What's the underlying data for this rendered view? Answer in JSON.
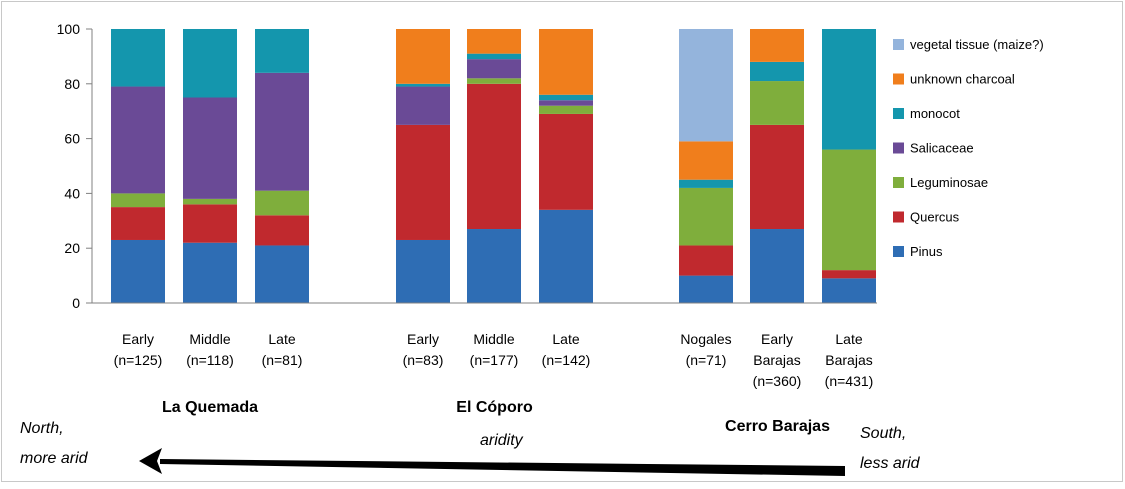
{
  "chart_data": {
    "type": "bar",
    "stacked": true,
    "ylim": [
      0,
      100
    ],
    "yticks": [
      0,
      20,
      40,
      60,
      80,
      100
    ],
    "grid": false,
    "legend_position": "right",
    "groups": [
      {
        "name": "La Quemada",
        "bars": [
          0,
          1,
          2
        ]
      },
      {
        "name": "El Cóporo",
        "bars": [
          3,
          4,
          5
        ]
      },
      {
        "name": "Cerro Barajas",
        "bars": [
          6,
          7,
          8
        ]
      }
    ],
    "categories": [
      [
        "Early",
        "(n=125)"
      ],
      [
        "Middle",
        "(n=118)"
      ],
      [
        "Late",
        "(n=81)"
      ],
      [
        "Early",
        "(n=83)"
      ],
      [
        "Middle",
        "(n=177)"
      ],
      [
        "Late",
        "(n=142)"
      ],
      [
        "Nogales",
        "(n=71)"
      ],
      [
        "Early",
        "Barajas",
        "(n=360)"
      ],
      [
        "Late",
        "Barajas",
        "(n=431)"
      ]
    ],
    "series": [
      {
        "name": "Pinus",
        "color": "#2e6db4",
        "values": [
          23,
          22,
          21,
          23,
          27,
          34,
          10,
          27,
          9
        ]
      },
      {
        "name": "Quercus",
        "color": "#c0292e",
        "values": [
          12,
          14,
          11,
          42,
          53,
          35,
          11,
          38,
          3
        ]
      },
      {
        "name": "Leguminosae",
        "color": "#7fae3c",
        "values": [
          5,
          2,
          9,
          0,
          2,
          3,
          21,
          16,
          44
        ]
      },
      {
        "name": "Salicaceae",
        "color": "#6a4a96",
        "values": [
          39,
          37,
          43,
          14,
          7,
          2,
          0,
          0,
          0
        ]
      },
      {
        "name": "monocot",
        "color": "#1496ad",
        "values": [
          21,
          25,
          16,
          1,
          2,
          2,
          3,
          7,
          44
        ]
      },
      {
        "name": "unknown charcoal",
        "color": "#f07e1c",
        "values": [
          0,
          0,
          0,
          20,
          9,
          24,
          14,
          12,
          0
        ]
      },
      {
        "name": "vegetal tissue  (maize?)",
        "color": "#94b4dc",
        "values": [
          0,
          0,
          0,
          0,
          0,
          0,
          41,
          0,
          0
        ]
      }
    ],
    "annotations": {
      "left_label": [
        "North,",
        "more arid"
      ],
      "right_label": [
        "South,",
        "less arid"
      ],
      "center_label": "aridity"
    }
  }
}
